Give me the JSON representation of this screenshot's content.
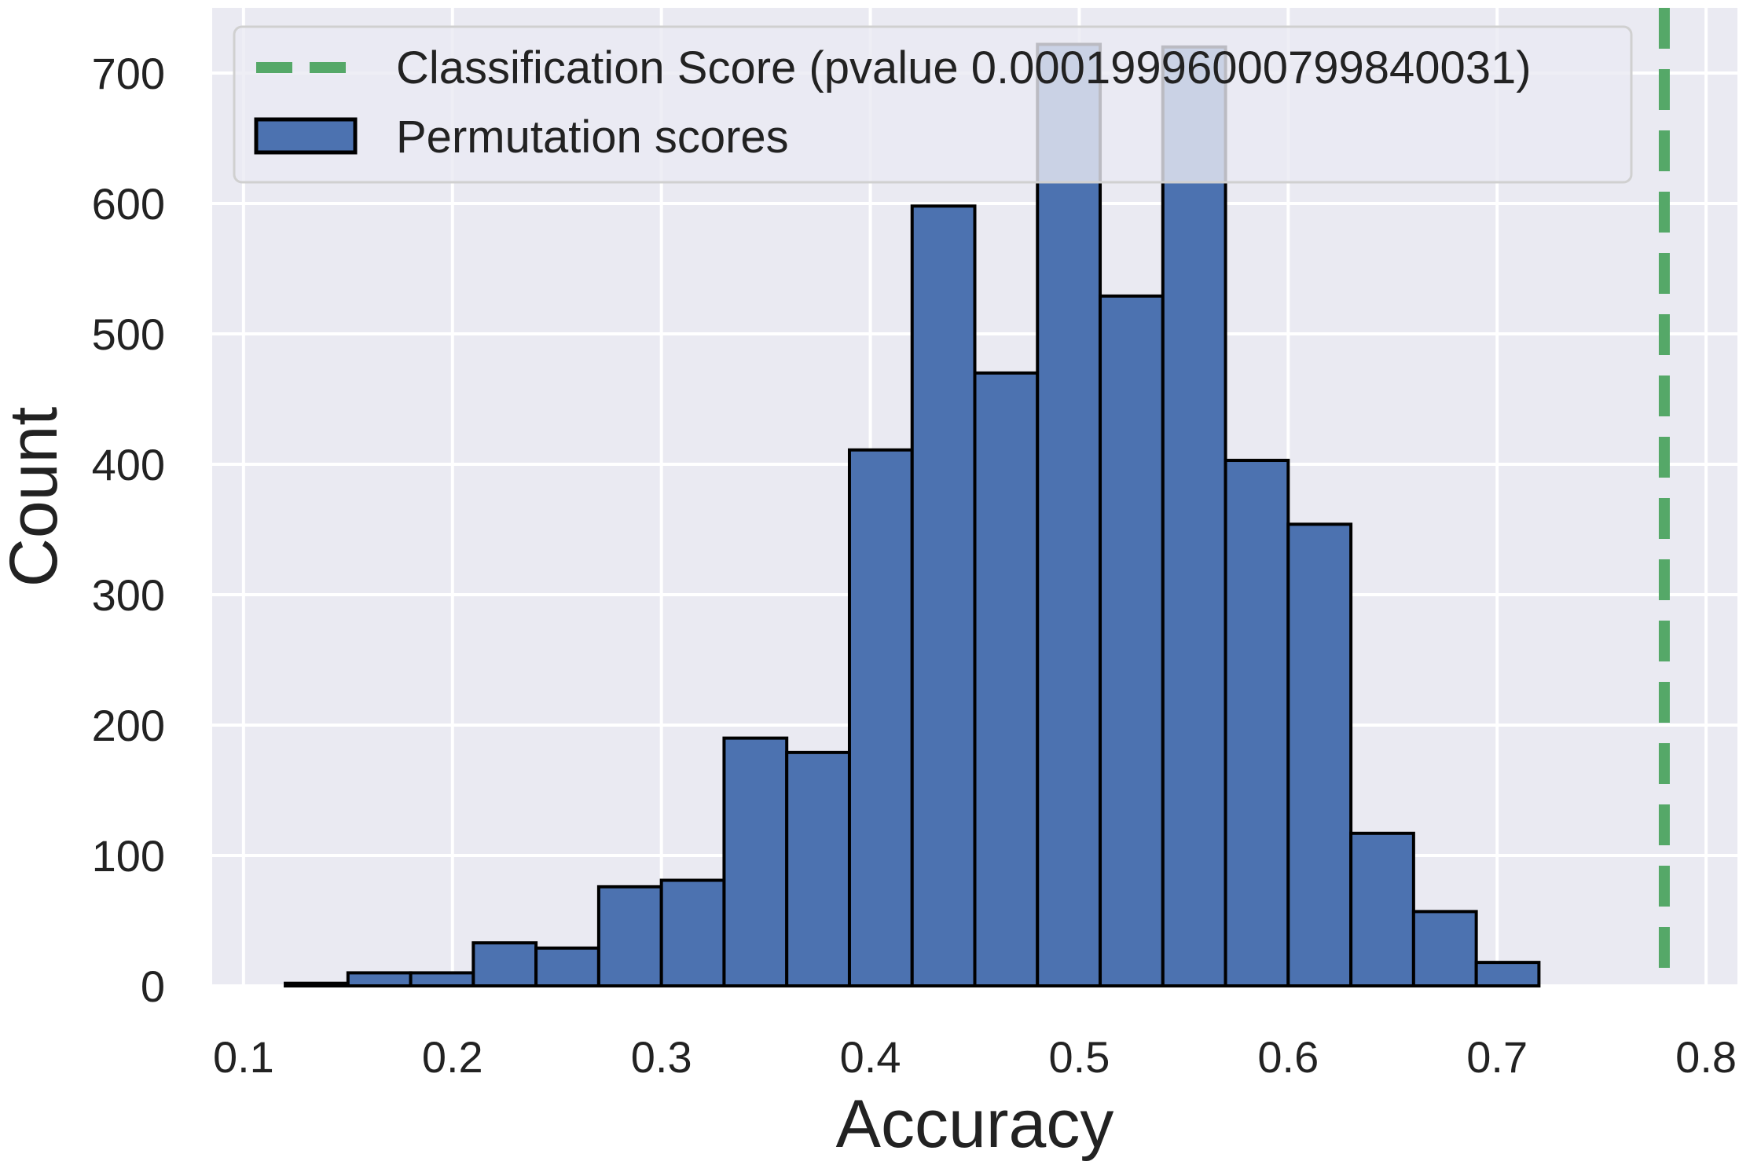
{
  "chart_data": {
    "type": "histogram",
    "xlabel": "Accuracy",
    "ylabel": "Count",
    "xlim": [
      0.085,
      0.815
    ],
    "ylim": [
      0,
      750
    ],
    "xticks": [
      "0.1",
      "0.2",
      "0.3",
      "0.4",
      "0.5",
      "0.6",
      "0.7",
      "0.8"
    ],
    "yticks": [
      "0",
      "100",
      "200",
      "300",
      "400",
      "500",
      "600",
      "700"
    ],
    "grid": true,
    "legend_position": "top",
    "bin_edges": [
      0.12,
      0.15,
      0.18,
      0.21,
      0.24,
      0.27,
      0.3,
      0.33,
      0.36,
      0.39,
      0.42,
      0.45,
      0.48,
      0.51,
      0.54,
      0.57,
      0.6,
      0.63,
      0.66,
      0.69,
      0.72
    ],
    "series": [
      {
        "name": "Permutation scores",
        "color": "#4c72b0",
        "edgecolor": "#000000",
        "values": [
          2,
          10,
          10,
          33,
          29,
          76,
          81,
          190,
          179,
          411,
          598,
          470,
          722,
          529,
          720,
          403,
          354,
          117,
          57,
          18
        ]
      }
    ],
    "vline": {
      "x": 0.78,
      "color": "#55a868",
      "style": "dashed",
      "label": "Classification Score (pvalue 0.00019996000799840031)"
    },
    "colors": {
      "plot_background": "#eaeaf2",
      "grid": "#ffffff"
    }
  }
}
